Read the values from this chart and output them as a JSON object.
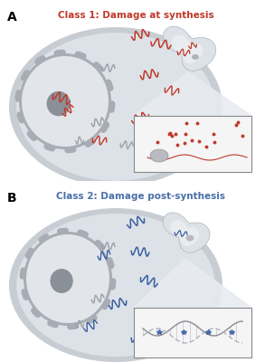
{
  "panel_A_label": "A",
  "panel_B_label": "B",
  "title_A": "Class 1: Damage at synthesis",
  "title_B": "Class 2: Damage post-synthesis",
  "title_A_color": "#c0392b",
  "title_B_color": "#4a6fa8",
  "bg_color": "#ffffff",
  "cell_fill": "#c8cdd4",
  "cell_interior": "#dde2e8",
  "nucleus_ring": "#a8adb5",
  "nucleus_fill": "#e2e6ea",
  "nucleolus_color": "#8a9098",
  "rna_red": "#c0392b",
  "rna_gray": "#9a9ea5",
  "rna_blue": "#3a5fa0",
  "mito_outer": "#c5c8cc",
  "mito_fill": "#eaedf0",
  "inset_bg": "#f5f5f5",
  "inset_edge": "#888888",
  "zoom_fill": "#e8ecf0"
}
